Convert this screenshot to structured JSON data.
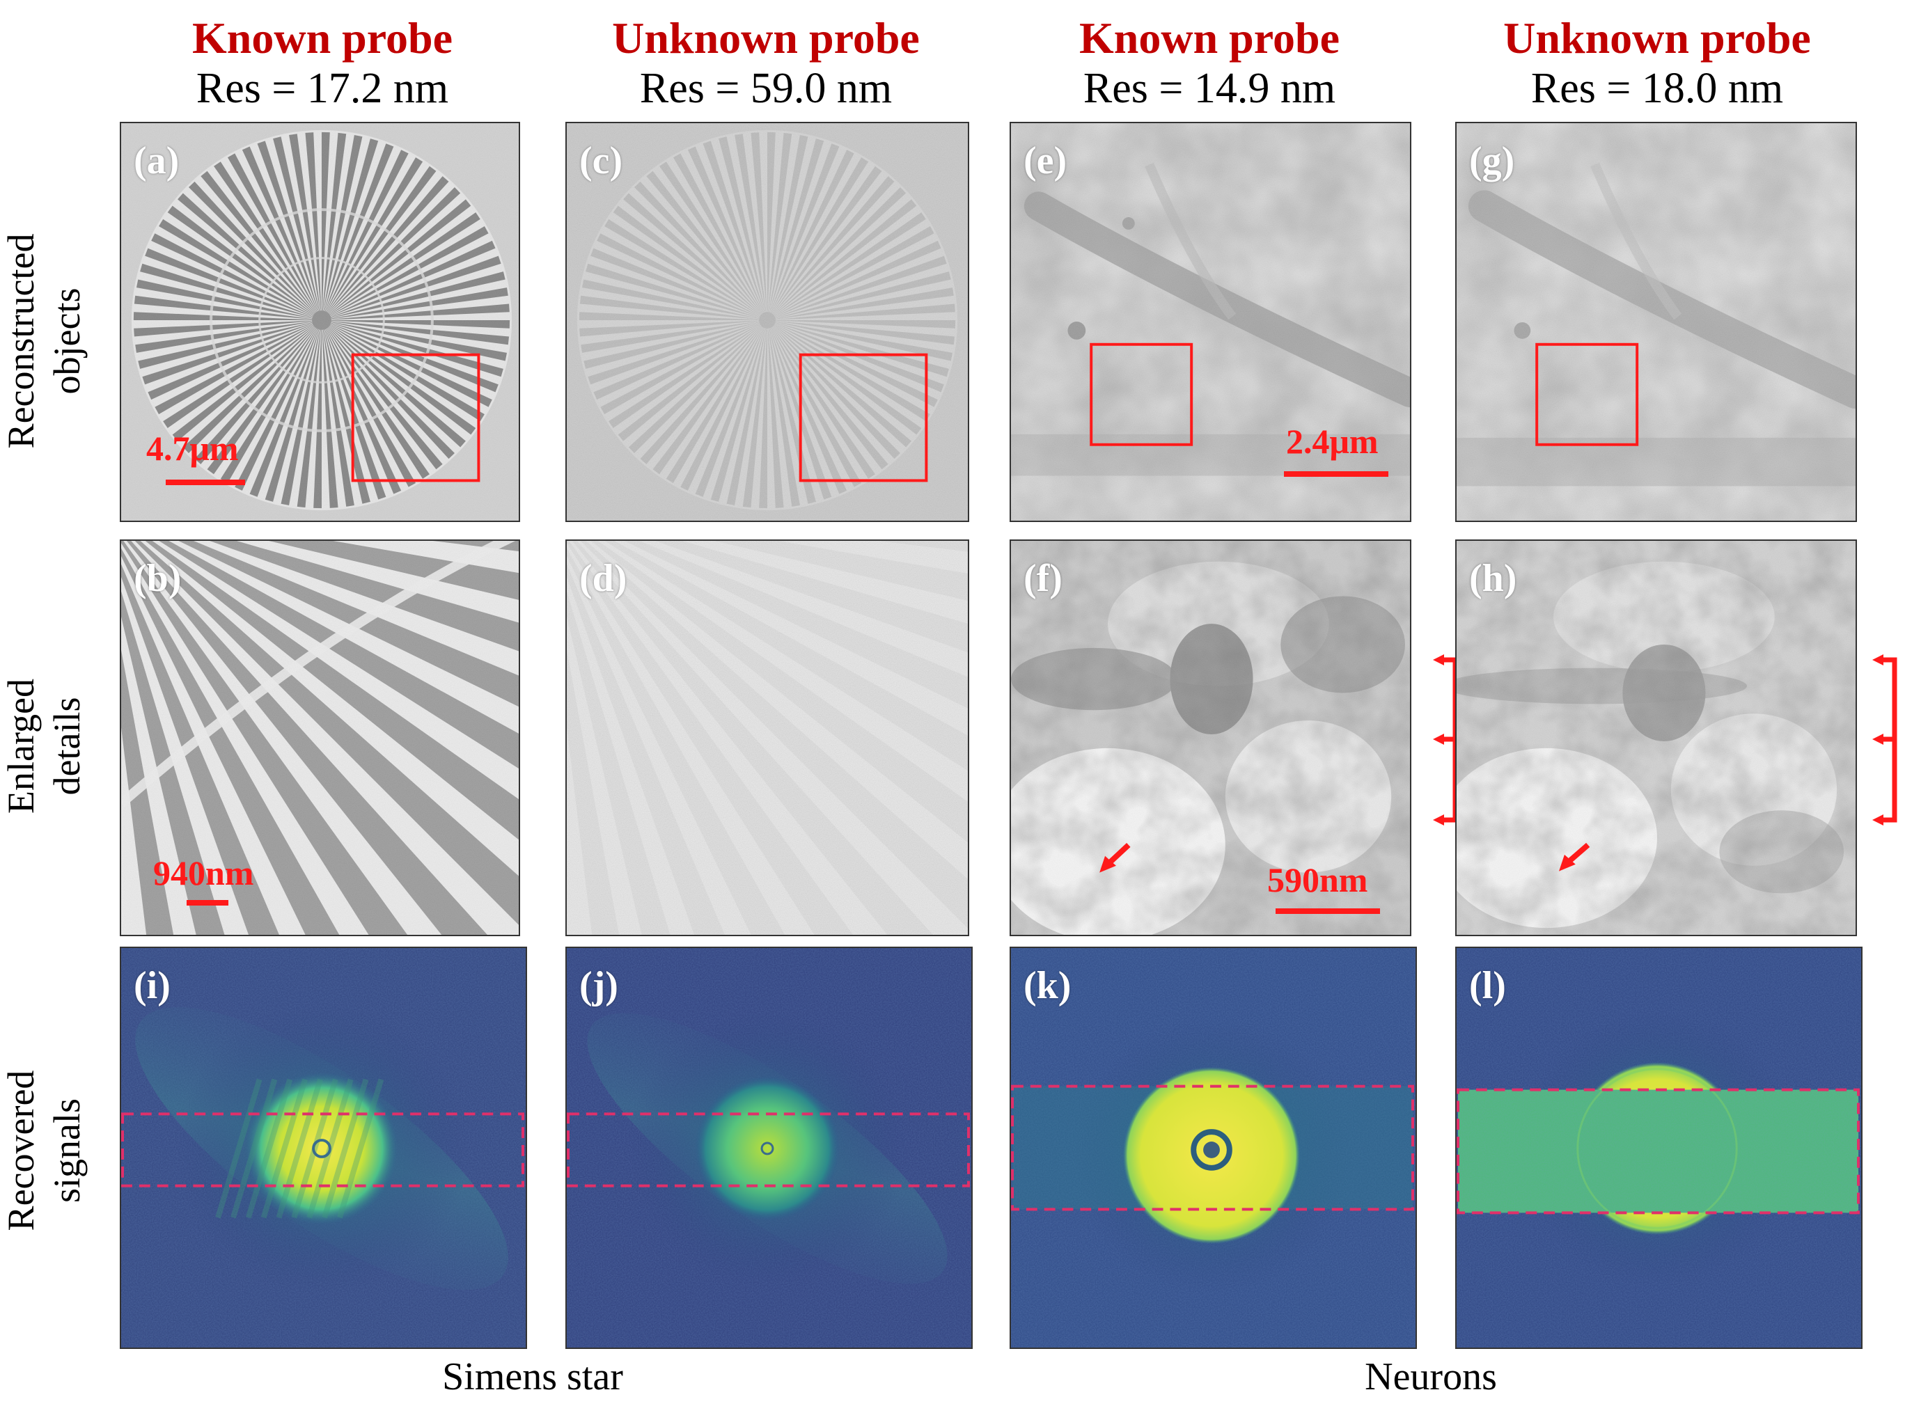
{
  "columns": [
    {
      "title": "Known probe",
      "res": "Res = 17.2 nm"
    },
    {
      "title": "Unknown probe",
      "res": "Res = 59.0 nm"
    },
    {
      "title": "Known probe",
      "res": "Res = 14.9 nm"
    },
    {
      "title": "Unknown probe",
      "res": "Res = 18.0 nm"
    }
  ],
  "rows": [
    {
      "line1": "Reconstructed",
      "line2": "objects"
    },
    {
      "line1": "Enlarged",
      "line2": "details"
    },
    {
      "line1": "Recovered",
      "line2": "signals"
    }
  ],
  "panel_labels": {
    "a": "(a)",
    "b": "(b)",
    "c": "(c)",
    "d": "(d)",
    "e": "(e)",
    "f": "(f)",
    "g": "(g)",
    "h": "(h)",
    "i": "(i)",
    "j": "(j)",
    "k": "(k)",
    "l": "(l)"
  },
  "scale_bars": {
    "a": "4.7μm",
    "b": "940nm",
    "e": "2.4μm",
    "f": "590nm"
  },
  "captions": {
    "left": "Simens  star",
    "right": "Neurons"
  },
  "colors": {
    "title": "#c00000",
    "annotation": "#ff1a1a",
    "roi_dashed": "#e0306a"
  }
}
